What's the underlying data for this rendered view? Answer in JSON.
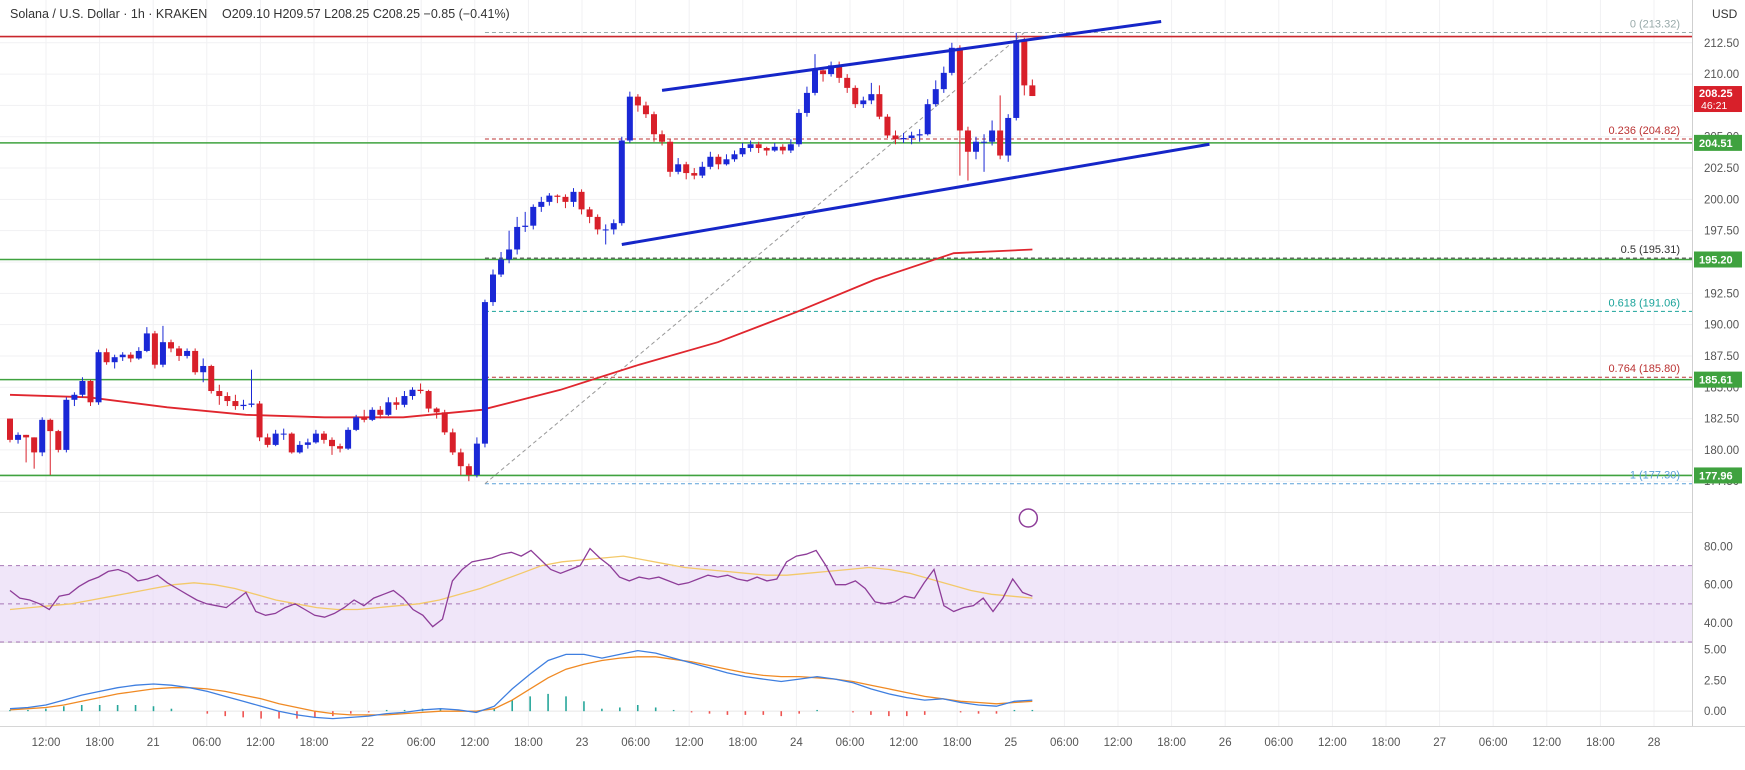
{
  "header": {
    "symbol": "Solana / U.S. Dollar · 1h · KRAKEN",
    "ohlc": "O209.10 H209.57 L208.25 C208.25 −0.85 (−0.41%)",
    "currency": "USD"
  },
  "colors": {
    "up": "#1a28d6",
    "down": "#d8202a",
    "channel": "#1526c8",
    "ma": "#e0262e",
    "level": "#3fa23f",
    "rsi": "#8e3d99",
    "rsi_ma": "#f3c96a",
    "rsi_band": "#eadbf6",
    "macd": "#3f7fe0",
    "signal": "#f08a24"
  },
  "chart_data": [
    {
      "type": "candlestick",
      "title": "Solana / U.S. Dollar · 1h · KRAKEN",
      "ylim": [
        176,
        214
      ],
      "y_ticks": [
        "212.50",
        "210.00",
        "207.50",
        "205.00",
        "202.50",
        "200.00",
        "197.50",
        "195.00",
        "192.50",
        "190.00",
        "187.50",
        "185.00",
        "182.50",
        "180.00",
        "177.50"
      ],
      "x_labels": [
        "12:00",
        "18:00",
        "21",
        "06:00",
        "12:00",
        "18:00",
        "22",
        "06:00",
        "12:00",
        "18:00",
        "23",
        "06:00",
        "12:00",
        "18:00",
        "24",
        "06:00",
        "12:00",
        "18:00",
        "25",
        "06:00",
        "12:00",
        "18:00",
        "26",
        "06:00",
        "12:00",
        "18:00",
        "27",
        "06:00",
        "12:00",
        "18:00",
        "28"
      ],
      "candles": [
        [
          182.5,
          180.8,
          182.5,
          180.6
        ],
        [
          180.8,
          181.2,
          181.4,
          180.5
        ],
        [
          181.2,
          181,
          181.2,
          179.0
        ],
        [
          181,
          179.8,
          181,
          178.5
        ],
        [
          179.8,
          182.4,
          182.6,
          179.5
        ],
        [
          182.4,
          181.5,
          182.5,
          178.0
        ],
        [
          181.5,
          180,
          181.6,
          179.8
        ],
        [
          180,
          184,
          184.2,
          179.8
        ],
        [
          184,
          184.4,
          184.6,
          183.5
        ],
        [
          184.4,
          185.5,
          185.8,
          184.2
        ],
        [
          185.5,
          183.8,
          185.6,
          183.5
        ],
        [
          183.8,
          187.8,
          188,
          183.6
        ],
        [
          187.8,
          187,
          188.1,
          186.8
        ],
        [
          187,
          187.4,
          187.6,
          186.5
        ],
        [
          187.4,
          187.6,
          187.8,
          187.1
        ],
        [
          187.6,
          187.3,
          187.8,
          187
        ],
        [
          187.3,
          187.9,
          188.2,
          187.2
        ],
        [
          187.9,
          189.3,
          189.8,
          187.8
        ],
        [
          189.3,
          186.8,
          189.5,
          186.5
        ],
        [
          186.8,
          188.6,
          189.9,
          186.6
        ],
        [
          188.6,
          188.1,
          188.8,
          187.8
        ],
        [
          188.1,
          187.5,
          188.3,
          187.1
        ],
        [
          187.5,
          187.9,
          188.1,
          187.3
        ],
        [
          187.9,
          186.2,
          188.1,
          186
        ],
        [
          186.2,
          186.7,
          187.3,
          185.4
        ],
        [
          186.7,
          184.7,
          186.8,
          184.5
        ],
        [
          184.7,
          184.3,
          185.2,
          183.6
        ],
        [
          184.3,
          183.9,
          184.6,
          183.5
        ],
        [
          183.9,
          183.5,
          184.4,
          183.2
        ],
        [
          183.5,
          183.6,
          184,
          183.2
        ],
        [
          183.6,
          183.7,
          186.4,
          183.4
        ],
        [
          183.7,
          181,
          183.9,
          180.7
        ],
        [
          181,
          180.4,
          181.3,
          180.2
        ],
        [
          180.4,
          181.3,
          181.6,
          180.3
        ],
        [
          181.3,
          181.3,
          181.7,
          180.8
        ],
        [
          181.3,
          179.8,
          181.4,
          179.7
        ],
        [
          179.8,
          180.4,
          180.7,
          179.7
        ],
        [
          180.4,
          180.6,
          180.9,
          180.1
        ],
        [
          180.6,
          181.3,
          181.6,
          180.5
        ],
        [
          181.3,
          180.8,
          181.5,
          180.5
        ],
        [
          180.8,
          180.3,
          181,
          179.6
        ],
        [
          180.3,
          180.1,
          180.5,
          179.8
        ],
        [
          180.1,
          181.6,
          181.8,
          180
        ],
        [
          181.6,
          182.6,
          182.8,
          181.5
        ],
        [
          182.6,
          182.4,
          183.2,
          182.2
        ],
        [
          182.4,
          183.2,
          183.4,
          182.3
        ],
        [
          183.2,
          182.8,
          183.5,
          182.5
        ],
        [
          182.8,
          183.8,
          184.2,
          182.7
        ],
        [
          183.8,
          183.6,
          184.2,
          183.2
        ],
        [
          183.6,
          184.3,
          184.7,
          183.4
        ],
        [
          184.3,
          184.8,
          185,
          184
        ],
        [
          184.8,
          184.7,
          185.3,
          184.5
        ],
        [
          184.7,
          183.3,
          184.8,
          183
        ],
        [
          183.3,
          183,
          183.4,
          182.5
        ],
        [
          183,
          181.4,
          183.2,
          181.2
        ],
        [
          181.4,
          179.8,
          181.7,
          179.6
        ],
        [
          179.8,
          178.7,
          180.1,
          178
        ],
        [
          178.7,
          178,
          178.9,
          177.5
        ],
        [
          178,
          180.5,
          181,
          177.8
        ],
        [
          180.5,
          191.8,
          192,
          180.2
        ],
        [
          191.8,
          194,
          194.4,
          191.5
        ],
        [
          194,
          195.2,
          195.8,
          193.8
        ],
        [
          195.2,
          196,
          197.5,
          194.9
        ],
        [
          196,
          197.8,
          198.6,
          195.6
        ],
        [
          197.8,
          197.9,
          199,
          197.4
        ],
        [
          197.9,
          199.4,
          199.6,
          197.6
        ],
        [
          199.4,
          199.8,
          200.2,
          199
        ],
        [
          199.8,
          200.3,
          200.5,
          199.5
        ],
        [
          200.3,
          200.2,
          200.4,
          199.7
        ],
        [
          200.2,
          199.8,
          200.4,
          199.3
        ],
        [
          199.8,
          200.6,
          200.9,
          199.4
        ],
        [
          200.6,
          199.2,
          200.8,
          198.8
        ],
        [
          199.2,
          198.6,
          199.4,
          198.1
        ],
        [
          198.6,
          197.6,
          198.8,
          197.2
        ],
        [
          197.6,
          197.6,
          198,
          196.4
        ],
        [
          197.6,
          198.1,
          198.4,
          197.2
        ],
        [
          198.1,
          204.7,
          205,
          197.9
        ],
        [
          204.7,
          208.2,
          208.6,
          204.5
        ],
        [
          208.2,
          207.5,
          208.4,
          207
        ],
        [
          207.5,
          206.8,
          207.8,
          206.5
        ],
        [
          206.8,
          205.2,
          207,
          204.6
        ],
        [
          205.2,
          204.6,
          205.5,
          204.3
        ],
        [
          204.6,
          202.2,
          204.8,
          201.8
        ],
        [
          202.2,
          202.8,
          203.3,
          202
        ],
        [
          202.8,
          202.1,
          203,
          201.6
        ],
        [
          202.1,
          201.9,
          202.5,
          201.6
        ],
        [
          201.9,
          202.6,
          203,
          201.7
        ],
        [
          202.6,
          203.4,
          203.8,
          202.4
        ],
        [
          203.4,
          202.8,
          203.6,
          202.4
        ],
        [
          202.8,
          203.2,
          203.6,
          202.7
        ],
        [
          203.2,
          203.6,
          203.9,
          203
        ],
        [
          203.6,
          204.1,
          204.5,
          203.4
        ],
        [
          204.1,
          204.4,
          204.7,
          203.8
        ],
        [
          204.4,
          204.1,
          204.6,
          203.7
        ],
        [
          204.1,
          203.9,
          204.2,
          203.5
        ],
        [
          203.9,
          204.2,
          204.5,
          203.8
        ],
        [
          204.2,
          203.9,
          204.4,
          203.6
        ],
        [
          203.9,
          204.4,
          204.8,
          203.7
        ],
        [
          204.4,
          206.9,
          207.2,
          204.2
        ],
        [
          206.9,
          208.5,
          209,
          206.6
        ],
        [
          208.5,
          210.3,
          211.6,
          208.3
        ],
        [
          210.3,
          210,
          210.5,
          209.4
        ],
        [
          210,
          210.7,
          211,
          209.8
        ],
        [
          210.7,
          209.7,
          211,
          209.3
        ],
        [
          209.7,
          208.9,
          210,
          208.5
        ],
        [
          208.9,
          207.6,
          209.1,
          207.3
        ],
        [
          207.6,
          207.9,
          208.2,
          207.3
        ],
        [
          207.9,
          208.4,
          209.3,
          207.6
        ],
        [
          208.4,
          206.6,
          209.1,
          206.4
        ],
        [
          206.6,
          205.1,
          206.8,
          204.9
        ],
        [
          205.1,
          204.8,
          205.5,
          204.4
        ],
        [
          204.8,
          204.9,
          205.3,
          204.5
        ],
        [
          204.9,
          205.1,
          205.4,
          204.4
        ],
        [
          205.1,
          205.2,
          205.6,
          204.6
        ],
        [
          205.2,
          207.6,
          208,
          205.1
        ],
        [
          207.6,
          208.8,
          209.5,
          207.4
        ],
        [
          208.8,
          210.1,
          210.6,
          208.5
        ],
        [
          210.1,
          212.1,
          212.5,
          209.9
        ],
        [
          212.1,
          205.5,
          212.3,
          201.9
        ],
        [
          205.5,
          203.8,
          205.8,
          201.5
        ],
        [
          203.8,
          204.6,
          205,
          203.2
        ],
        [
          204.6,
          204.6,
          205.2,
          202.2
        ],
        [
          204.6,
          205.5,
          206.3,
          204.3
        ],
        [
          205.5,
          203.5,
          208.3,
          203.2
        ],
        [
          203.5,
          206.5,
          206.8,
          203
        ],
        [
          206.5,
          212.7,
          213.3,
          206.3
        ],
        [
          212.7,
          209.1,
          212.9,
          208.3
        ],
        [
          209.1,
          208.25,
          209.57,
          208.25
        ]
      ],
      "moving_average": {
        "from_index": 0,
        "values": [
          184.4,
          184.2,
          183.4,
          182.8,
          182.6,
          182.6,
          183.2,
          184.8,
          186.8,
          188.6,
          191,
          193.6,
          195.7,
          196
        ]
      },
      "horizontal_levels": [
        {
          "value": 204.51,
          "label": "204.51"
        },
        {
          "value": 195.2,
          "label": "195.20"
        },
        {
          "value": 185.61,
          "label": "185.61"
        },
        {
          "value": 177.96,
          "label": "177.96"
        }
      ],
      "resistance_level": {
        "value": 213.0
      },
      "fibonacci": [
        {
          "label": "0 (213.32)",
          "value": 213.32
        },
        {
          "label": "0.236 (204.82)",
          "value": 204.82
        },
        {
          "label": "0.5 (195.31)",
          "value": 195.31
        },
        {
          "label": "0.618 (191.06)",
          "value": 191.06
        },
        {
          "label": "0.764 (185.80)",
          "value": 185.8
        },
        {
          "label": "1 (177.30)",
          "value": 177.3
        }
      ],
      "channel": {
        "upper": [
          [
            81,
            208.7
          ],
          [
            143,
            214.2
          ]
        ],
        "lower": [
          [
            76,
            196.4
          ],
          [
            149,
            204.4
          ]
        ]
      },
      "last_price": {
        "value": "208.25",
        "countdown": "46:21"
      }
    },
    {
      "type": "line",
      "name": "RSI",
      "ylim": [
        30,
        85
      ],
      "y_ticks": [
        "80.00",
        "60.00",
        "40.00"
      ],
      "band": [
        30,
        70
      ],
      "series": [
        {
          "name": "",
          "values": [
            57,
            53,
            52,
            50,
            47,
            54,
            55,
            59,
            62,
            64,
            67,
            68,
            66,
            62,
            63,
            65,
            61,
            58,
            55,
            52,
            50,
            49,
            48,
            52,
            56,
            46,
            44,
            45,
            48,
            50,
            47,
            44,
            43,
            45,
            48,
            52,
            49,
            53,
            55,
            57,
            53,
            47,
            44,
            38,
            42,
            62,
            68,
            72,
            73,
            74,
            76,
            77,
            75,
            78,
            73,
            68,
            66,
            68,
            70,
            79,
            74,
            70,
            64,
            62,
            64,
            63,
            64,
            62,
            60,
            61,
            63,
            65,
            64,
            65,
            63,
            62,
            64,
            62,
            63,
            72,
            75,
            76,
            78,
            70,
            60,
            60,
            62,
            58,
            51,
            50,
            51,
            54,
            53,
            61,
            68,
            49,
            46,
            48,
            49,
            53,
            46,
            53,
            63,
            56,
            54
          ]
        },
        {
          "name": "",
          "values": [
            47,
            48,
            49,
            50,
            52,
            54,
            56,
            58,
            60,
            61,
            60,
            58,
            55,
            52,
            50,
            48,
            47,
            47,
            48,
            49,
            50,
            52,
            55,
            58,
            62,
            66,
            70,
            72,
            73,
            74,
            75,
            73,
            71,
            69,
            68,
            67,
            66,
            65,
            65,
            66,
            67,
            68,
            69,
            68,
            66,
            63,
            60,
            57,
            55,
            54,
            53
          ]
        }
      ]
    },
    {
      "type": "line",
      "name": "MACD",
      "ylim": [
        -1.2,
        5.6
      ],
      "y_ticks": [
        "5.00",
        "2.50",
        "0.00"
      ],
      "series": [
        {
          "name": "",
          "values": [
            0.2,
            0.3,
            0.5,
            0.9,
            1.3,
            1.6,
            1.9,
            2.1,
            2.2,
            2.1,
            1.9,
            1.6,
            1.2,
            0.8,
            0.4,
            0.0,
            -0.3,
            -0.5,
            -0.6,
            -0.5,
            -0.4,
            -0.2,
            -0.1,
            0.1,
            0.2,
            0.1,
            -0.1,
            0.4,
            1.8,
            3.0,
            4.1,
            4.6,
            4.6,
            4.3,
            4.6,
            4.9,
            4.7,
            4.3,
            3.9,
            3.5,
            3.1,
            2.8,
            2.6,
            2.4,
            2.6,
            2.8,
            2.6,
            2.3,
            1.8,
            1.4,
            1.1,
            0.9,
            1.0,
            0.7,
            0.5,
            0.4,
            0.8,
            0.9
          ]
        },
        {
          "name": "",
          "values": [
            0.1,
            0.2,
            0.3,
            0.5,
            0.8,
            1.1,
            1.4,
            1.6,
            1.8,
            1.9,
            1.9,
            1.8,
            1.6,
            1.3,
            1.0,
            0.6,
            0.3,
            0.0,
            -0.2,
            -0.3,
            -0.3,
            -0.3,
            -0.2,
            -0.1,
            0.0,
            0.0,
            0.0,
            0.2,
            0.9,
            1.8,
            2.7,
            3.4,
            3.8,
            4.1,
            4.3,
            4.4,
            4.4,
            4.2,
            4.0,
            3.7,
            3.4,
            3.1,
            2.9,
            2.8,
            2.8,
            2.7,
            2.6,
            2.4,
            2.1,
            1.8,
            1.5,
            1.2,
            1.0,
            0.8,
            0.7,
            0.6,
            0.7,
            0.8
          ]
        }
      ]
    }
  ]
}
